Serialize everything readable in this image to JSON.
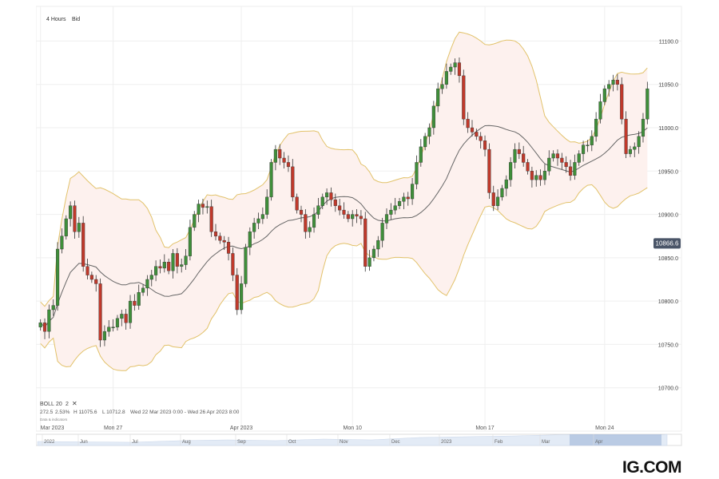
{
  "header": {
    "timeframe": "4 Hours",
    "price_side": "Bid"
  },
  "indicator": {
    "name": "BOLL",
    "period": "20",
    "stddev": "2",
    "stats_change": "272.5",
    "stats_pct": "2.53%",
    "high": "H 11075.6",
    "low": "L 10712.8",
    "range": "Wed 22 Mar 2023 0:00 - Wed 26 Apr 2023 8:00",
    "data_note": "Data & indicators"
  },
  "current_price": "10866.6",
  "brand": "IG.COM",
  "colors": {
    "up": "#3f8f3a",
    "down": "#c0392b",
    "band": "#e2c26a",
    "band_fill": "#fdf1ee",
    "middle": "#666666",
    "price_badge": "#4a5568"
  },
  "chart_data": {
    "type": "candlestick",
    "xlabel": "",
    "ylabel": "",
    "ylim": [
      10650,
      11140
    ],
    "yticks": [
      "11100.0",
      "11050.0",
      "11000.0",
      "10950.0",
      "10900.0",
      "10850.0",
      "10800.0",
      "10750.0",
      "10700.0"
    ],
    "x_ticks": [
      {
        "index": 0,
        "label": "Mar 2023"
      },
      {
        "index": 17,
        "label": "Mon 27"
      },
      {
        "index": 47,
        "label": "Apr 2023"
      },
      {
        "index": 73,
        "label": "Mon 10"
      },
      {
        "index": 104,
        "label": "Mon 17"
      },
      {
        "index": 132,
        "label": "Mon 24"
      }
    ],
    "closes": [
      10775,
      10765,
      10790,
      10795,
      10860,
      10875,
      10895,
      10910,
      10880,
      10890,
      10840,
      10830,
      10825,
      10820,
      10755,
      10765,
      10770,
      10770,
      10780,
      10785,
      10775,
      10800,
      10795,
      10810,
      10815,
      10825,
      10830,
      10840,
      10838,
      10845,
      10835,
      10855,
      10840,
      10842,
      10852,
      10885,
      10900,
      10912,
      10908,
      10909,
      10880,
      10875,
      10870,
      10868,
      10855,
      10830,
      10790,
      10820,
      10862,
      10880,
      10890,
      10895,
      10900,
      10920,
      10960,
      10975,
      10965,
      10960,
      10955,
      10920,
      10905,
      10900,
      10880,
      10885,
      10900,
      10910,
      10920,
      10925,
      10917,
      10910,
      10905,
      10900,
      10895,
      10900,
      10898,
      10895,
      10840,
      10850,
      10860,
      10870,
      10890,
      10900,
      10905,
      10910,
      10915,
      10920,
      10918,
      10935,
      10960,
      10978,
      10990,
      11000,
      11025,
      11045,
      11050,
      11065,
      11070,
      11075,
      11060,
      11010,
      11000,
      10995,
      10990,
      10985,
      10975,
      10925,
      10910,
      10920,
      10930,
      10940,
      10960,
      10975,
      10970,
      10960,
      10950,
      10940,
      10945,
      10940,
      10950,
      10965,
      10970,
      10965,
      10960,
      10955,
      10945,
      10960,
      10970,
      10980,
      10980,
      10990,
      11010,
      11030,
      11045,
      11050,
      11055,
      11050,
      11010,
      10970,
      10975,
      10978,
      10990,
      11010,
      11045
    ]
  }
}
